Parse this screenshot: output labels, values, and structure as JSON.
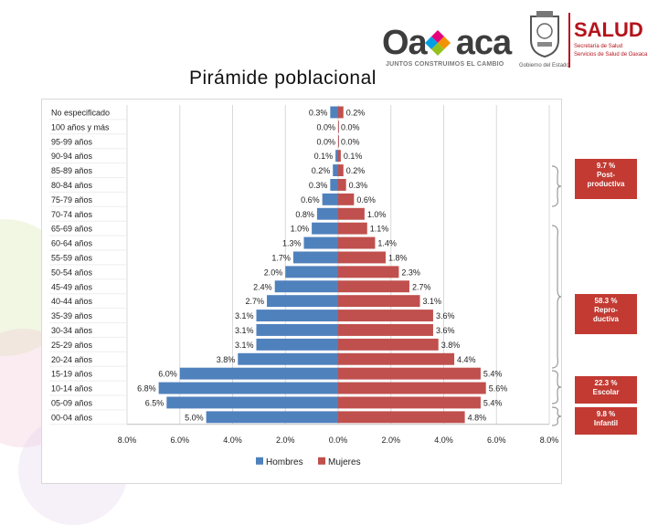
{
  "header": {
    "title": "Pirámide poblacional",
    "oaxaca_logo": {
      "word_pre": "Oa",
      "word_post": "aca",
      "tagline": "JUNTOS CONSTRUIMOS EL CAMBIO",
      "government_label": "Gobierno del Estado"
    },
    "salud_logo": {
      "word": "SALUD",
      "line1": "Secretaría de Salud",
      "line2": "Servicios de Salud de Oaxaca"
    }
  },
  "annotations": [
    {
      "lines": [
        "9.7 %",
        "Post-",
        "productiva"
      ]
    },
    {
      "lines": [
        "58.3 %",
        "Repro-",
        "ductiva"
      ]
    },
    {
      "lines": [
        "22.3 %",
        "Escolar"
      ]
    },
    {
      "lines": [
        "9.8 %",
        "Infantil"
      ]
    }
  ],
  "colors": {
    "hombres": "#4f81bd",
    "mujeres": "#c0504d",
    "annotation": "#c23a32",
    "brace": "#999999"
  },
  "chart_data": {
    "type": "bar",
    "orientation": "horizontal-pyramid",
    "categories": [
      "No especificado",
      "100 años y más",
      "95-99 años",
      "90-94 años",
      "85-89 años",
      "80-84 años",
      "75-79 años",
      "70-74 años",
      "65-69 años",
      "60-64 años",
      "55-59 años",
      "50-54 años",
      "45-49 años",
      "40-44 años",
      "35-39 años",
      "30-34 años",
      "25-29 años",
      "20-24 años",
      "15-19 años",
      "10-14 años",
      "05-09 años",
      "00-04 años"
    ],
    "series": [
      {
        "name": "Hombres",
        "values": [
          -0.3,
          -0.0,
          -0.0,
          -0.1,
          -0.2,
          -0.3,
          -0.6,
          -0.8,
          -1.0,
          -1.3,
          -1.7,
          -2.0,
          -2.4,
          -2.7,
          -3.1,
          -3.1,
          -3.1,
          -3.8,
          -6.0,
          -6.8,
          -6.5,
          -5.0
        ],
        "labels": [
          "0.3%",
          "0.0%",
          "0.0%",
          "0.1%",
          "0.2%",
          "0.3%",
          "0.6%",
          "0.8%",
          "1.0%",
          "1.3%",
          "1.7%",
          "2.0%",
          "2.4%",
          "2.7%",
          "3.1%",
          "3.1%",
          "3.1%",
          "3.8%",
          "6.0%",
          "6.8%",
          "6.5%",
          "5.0%"
        ]
      },
      {
        "name": "Mujeres",
        "values": [
          0.2,
          0.0,
          0.0,
          0.1,
          0.2,
          0.3,
          0.6,
          1.0,
          1.1,
          1.4,
          1.8,
          2.3,
          2.7,
          3.1,
          3.6,
          3.6,
          3.8,
          4.4,
          5.4,
          5.6,
          5.4,
          4.8
        ],
        "labels": [
          "0.2%",
          "0.0%",
          "0.0%",
          "0.1%",
          "0.2%",
          "0.3%",
          "0.6%",
          "1.0%",
          "1.1%",
          "1.4%",
          "1.8%",
          "2.3%",
          "2.7%",
          "3.1%",
          "3.6%",
          "3.6%",
          "3.8%",
          "4.4%",
          "5.4%",
          "5.6%",
          "5.4%",
          "4.8%"
        ]
      }
    ],
    "xlim": [
      -8,
      8
    ],
    "xticks": [
      -8,
      -6,
      -4,
      -2,
      0,
      2,
      4,
      6,
      8
    ],
    "xtick_labels": [
      "8.0%",
      "6.0%",
      "4.0%",
      "2.0%",
      "0.0%",
      "2.0%",
      "4.0%",
      "6.0%",
      "8.0%"
    ],
    "legend_position": "bottom-center",
    "grid": true
  }
}
